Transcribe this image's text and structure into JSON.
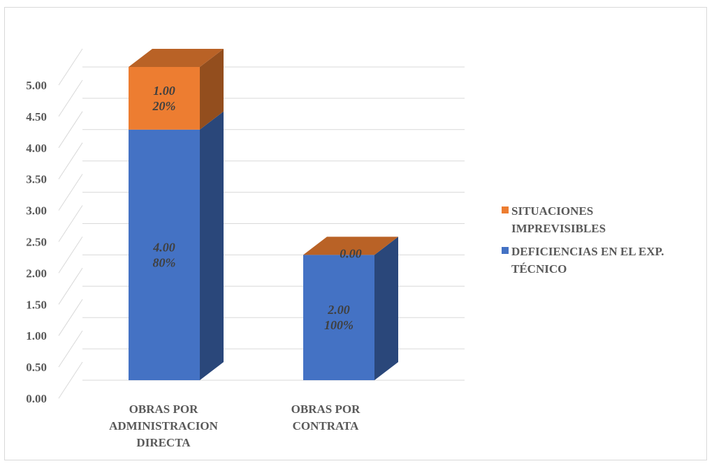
{
  "chart_data": {
    "type": "bar",
    "stacked": true,
    "three_d": true,
    "categories": [
      [
        "OBRAS POR",
        "ADMINISTRACION",
        "DIRECTA"
      ],
      [
        "OBRAS POR",
        "CONTRATA"
      ]
    ],
    "series": [
      {
        "name": "DEFICIENCIAS EN EL EXP. TÉCNICO",
        "legend_lines": [
          "DEFICIENCIAS EN EL EXP.",
          "TÉCNICO"
        ],
        "color": "#4472c4",
        "values": [
          4.0,
          2.0
        ],
        "labels": [
          [
            "4.00",
            "80%"
          ],
          [
            "2.00",
            "100%"
          ]
        ]
      },
      {
        "name": "SITUACIONES IMPREVISIBLES",
        "legend_lines": [
          "SITUACIONES",
          "IMPREVISIBLES"
        ],
        "color": "#ed7d31",
        "values": [
          1.0,
          0.0
        ],
        "labels": [
          [
            "1.00",
            "20%"
          ],
          [
            "0.00"
          ]
        ]
      }
    ],
    "ylim": [
      0,
      5
    ],
    "ytick_labels": [
      "0.00",
      "0.50",
      "1.00",
      "1.50",
      "2.00",
      "2.50",
      "3.00",
      "3.50",
      "4.00",
      "4.50",
      "5.00"
    ],
    "grid": true,
    "legend_position": "right"
  }
}
